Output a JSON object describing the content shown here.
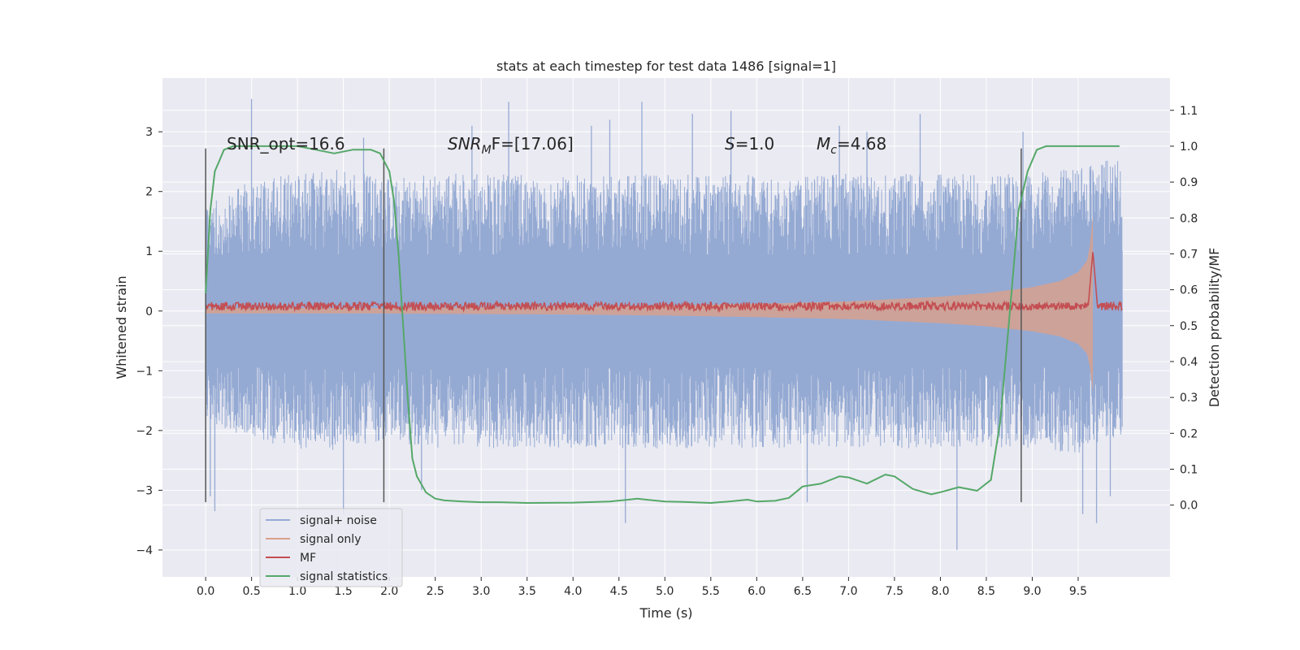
{
  "chart_data": {
    "type": "line",
    "title": "stats at each timestep for test data 1486 [signal=1]",
    "xlabel": "Time (s)",
    "ylabel": "Whitened strain",
    "y2label": "Detection probability/MF",
    "xlim": [
      -0.47,
      10.5
    ],
    "ylim": [
      -4.45,
      3.9
    ],
    "y2lim": [
      -0.2,
      1.19
    ],
    "grid": true,
    "legend_position": "lower-left",
    "x_ticks": [
      "0.0",
      "0.5",
      "1.0",
      "1.5",
      "2.0",
      "2.5",
      "3.0",
      "3.5",
      "4.0",
      "4.5",
      "5.0",
      "5.5",
      "6.0",
      "6.5",
      "7.0",
      "7.5",
      "8.0",
      "8.5",
      "9.0",
      "9.5"
    ],
    "y_ticks": [
      "3",
      "2",
      "1",
      "0",
      "−1",
      "−2",
      "−3",
      "−4"
    ],
    "y2_ticks": [
      "1.1",
      "1.0",
      "0.9",
      "0.8",
      "0.7",
      "0.6",
      "0.5",
      "0.4",
      "0.3",
      "0.2",
      "0.1",
      "0.0"
    ],
    "annotations": {
      "snr_opt": "SNR_opt=16.6",
      "snr_mf_main": "SNR",
      "snr_mf_sub": "M",
      "snr_mf_rest": "F=[17.06]",
      "s_main": "S",
      "s_rest": "=1.0",
      "mc_main": "M",
      "mc_sub": "c",
      "mc_rest": "=4.68"
    },
    "vertical_markers": [
      0.0,
      1.94,
      8.88
    ],
    "vertical_marker_range": [
      -3.2,
      2.72
    ],
    "series": [
      {
        "name": "signal+ noise",
        "color": "#95aad3",
        "x_range": [
          0.0,
          9.98
        ],
        "envelope_upper": [
          [
            0.0,
            1.8
          ],
          [
            0.5,
            2.2
          ],
          [
            1.0,
            2.3
          ],
          [
            1.5,
            2.4
          ],
          [
            2.0,
            2.2
          ],
          [
            2.5,
            2.3
          ],
          [
            3.0,
            2.3
          ],
          [
            3.5,
            2.3
          ],
          [
            4.0,
            2.3
          ],
          [
            4.5,
            2.3
          ],
          [
            5.0,
            2.3
          ],
          [
            5.5,
            2.3
          ],
          [
            6.0,
            2.3
          ],
          [
            6.5,
            2.3
          ],
          [
            7.0,
            2.3
          ],
          [
            7.5,
            2.3
          ],
          [
            8.0,
            2.3
          ],
          [
            8.5,
            2.3
          ],
          [
            9.0,
            2.3
          ],
          [
            9.5,
            2.4
          ],
          [
            9.98,
            2.6
          ]
        ],
        "envelope_lower": [
          [
            0.0,
            -1.8
          ],
          [
            0.5,
            -2.2
          ],
          [
            1.0,
            -2.3
          ],
          [
            1.5,
            -2.4
          ],
          [
            2.0,
            -2.2
          ],
          [
            2.5,
            -2.3
          ],
          [
            3.0,
            -2.3
          ],
          [
            3.5,
            -2.3
          ],
          [
            4.0,
            -2.3
          ],
          [
            4.5,
            -2.3
          ],
          [
            5.0,
            -2.3
          ],
          [
            5.5,
            -2.3
          ],
          [
            6.0,
            -2.3
          ],
          [
            6.5,
            -2.3
          ],
          [
            7.0,
            -2.3
          ],
          [
            7.5,
            -2.3
          ],
          [
            8.0,
            -2.3
          ],
          [
            8.5,
            -2.3
          ],
          [
            9.0,
            -2.3
          ],
          [
            9.5,
            -2.4
          ],
          [
            9.98,
            -2.1
          ]
        ],
        "spikes": [
          [
            0.05,
            -3.1
          ],
          [
            0.1,
            -3.35
          ],
          [
            0.5,
            3.55
          ],
          [
            1.5,
            -3.4
          ],
          [
            1.72,
            2.9
          ],
          [
            2.35,
            -3.0
          ],
          [
            2.9,
            3.1
          ],
          [
            3.3,
            3.5
          ],
          [
            4.2,
            3.1
          ],
          [
            4.4,
            3.2
          ],
          [
            4.57,
            -3.55
          ],
          [
            4.75,
            3.5
          ],
          [
            5.3,
            3.3
          ],
          [
            5.72,
            3.35
          ],
          [
            6.55,
            -3.2
          ],
          [
            6.9,
            3.1
          ],
          [
            7.2,
            3.0
          ],
          [
            7.78,
            3.3
          ],
          [
            8.18,
            -4.0
          ],
          [
            8.9,
            3.0
          ],
          [
            9.55,
            -3.4
          ],
          [
            9.7,
            -3.55
          ],
          [
            9.85,
            -3.1
          ]
        ]
      },
      {
        "name": "signal only",
        "color": "#d9a08b",
        "envelope": [
          [
            0.0,
            0.05
          ],
          [
            2.0,
            0.05
          ],
          [
            3.0,
            0.06
          ],
          [
            4.0,
            0.07
          ],
          [
            5.0,
            0.09
          ],
          [
            6.0,
            0.12
          ],
          [
            7.0,
            0.16
          ],
          [
            8.0,
            0.24
          ],
          [
            8.5,
            0.3
          ],
          [
            9.0,
            0.4
          ],
          [
            9.3,
            0.5
          ],
          [
            9.5,
            0.65
          ],
          [
            9.6,
            0.85
          ],
          [
            9.64,
            1.2
          ],
          [
            9.66,
            1.6
          ]
        ],
        "chirp_end": 9.66
      },
      {
        "name": "MF",
        "color": "#c44e52",
        "baseline": 0.08,
        "noise_amplitude": 0.07,
        "peak": [
          9.66,
          1.0
        ]
      },
      {
        "name": "signal statistics",
        "color": "#55a868",
        "x": [
          0.0,
          0.05,
          0.1,
          0.15,
          0.2,
          0.3,
          0.5,
          0.8,
          1.0,
          1.2,
          1.4,
          1.6,
          1.8,
          1.9,
          2.0,
          2.05,
          2.1,
          2.15,
          2.2,
          2.25,
          2.3,
          2.4,
          2.5,
          2.6,
          2.8,
          3.0,
          3.2,
          3.5,
          4.0,
          4.4,
          4.6,
          4.7,
          4.8,
          5.0,
          5.2,
          5.5,
          5.7,
          5.9,
          6.0,
          6.2,
          6.35,
          6.5,
          6.7,
          6.9,
          7.0,
          7.2,
          7.4,
          7.5,
          7.7,
          7.9,
          8.0,
          8.2,
          8.4,
          8.55,
          8.65,
          8.75,
          8.85,
          8.95,
          9.05,
          9.15,
          9.3,
          9.5,
          9.7,
          9.95
        ],
        "y": [
          0.59,
          0.82,
          0.93,
          0.96,
          0.99,
          1.0,
          1.0,
          1.0,
          1.0,
          0.99,
          0.98,
          0.99,
          0.99,
          0.98,
          0.93,
          0.85,
          0.7,
          0.5,
          0.3,
          0.13,
          0.08,
          0.035,
          0.018,
          0.013,
          0.01,
          0.008,
          0.008,
          0.006,
          0.007,
          0.01,
          0.015,
          0.018,
          0.015,
          0.01,
          0.009,
          0.006,
          0.01,
          0.015,
          0.01,
          0.012,
          0.02,
          0.052,
          0.06,
          0.08,
          0.077,
          0.06,
          0.085,
          0.08,
          0.045,
          0.03,
          0.036,
          0.05,
          0.04,
          0.07,
          0.23,
          0.52,
          0.82,
          0.93,
          0.99,
          1.0,
          1.0,
          1.0,
          1.0,
          1.0
        ]
      }
    ]
  }
}
